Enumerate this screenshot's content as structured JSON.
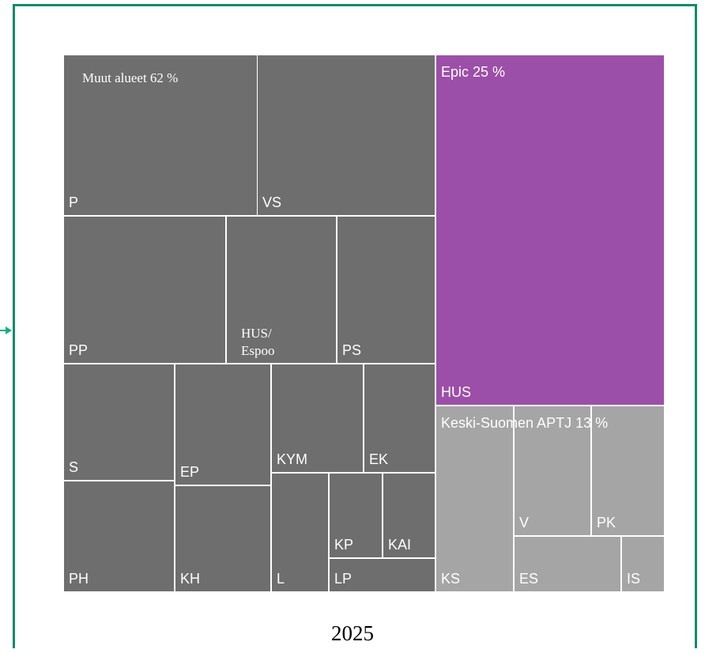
{
  "chart_data": {
    "type": "treemap",
    "title": "",
    "caption": "2025",
    "colors": {
      "muut": "#6e6e6e",
      "epic": "#9c4fa8",
      "keski": "#a5a5a5",
      "border": "#ffffff",
      "frame": "#0e8c6a"
    },
    "groups": [
      {
        "label": "Muut alueet 62 %",
        "percent": 62,
        "color_key": "muut",
        "items": [
          "P",
          "VS",
          "PP",
          "HUS/ Espoo",
          "PS",
          "S",
          "PH",
          "EP",
          "KH",
          "KYM",
          "EK",
          "L",
          "KP",
          "KAI",
          "LP"
        ]
      },
      {
        "label": "Epic 25 %",
        "percent": 25,
        "color_key": "epic",
        "items": [
          "HUS"
        ]
      },
      {
        "label": "Keski-Suomen APTJ 13 %",
        "percent": 13,
        "color_key": "keski",
        "items": [
          "KS",
          "V",
          "PK",
          "ES",
          "IS"
        ]
      }
    ]
  }
}
